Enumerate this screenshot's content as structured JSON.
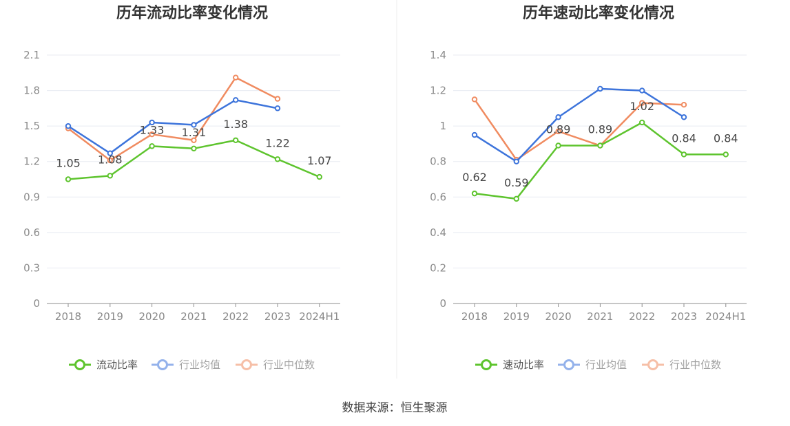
{
  "source": "数据来源：恒生聚源",
  "colors": {
    "company": "#5ec42e",
    "avg": "#3d74db",
    "median": "#f08b60",
    "grid": "#e8ebf2",
    "axis": "#8c8c8c"
  },
  "chart_data": [
    {
      "type": "line",
      "title": "历年流动比率变化情况",
      "categories": [
        "2018",
        "2019",
        "2020",
        "2021",
        "2022",
        "2023",
        "2024H1"
      ],
      "ylim": [
        0,
        2.1
      ],
      "yticks": [
        "0",
        "0.3",
        "0.6",
        "0.9",
        "1.2",
        "1.5",
        "1.8",
        "2.1"
      ],
      "grid": true,
      "legend_position": "bottom",
      "series": [
        {
          "name": "流动比率",
          "color": "#5ec42e",
          "values": [
            1.05,
            1.08,
            1.33,
            1.31,
            1.38,
            1.22,
            1.07
          ],
          "labels": [
            "1.05",
            "1.08",
            "1.33",
            "1.31",
            "1.38",
            "1.22",
            "1.07"
          ]
        },
        {
          "name": "行业均值",
          "color": "#3d74db",
          "values": [
            1.5,
            1.27,
            1.53,
            1.51,
            1.72,
            1.65,
            null
          ]
        },
        {
          "name": "行业中位数",
          "color": "#f08b60",
          "values": [
            1.48,
            1.21,
            1.43,
            1.38,
            1.91,
            1.73,
            null
          ]
        }
      ]
    },
    {
      "type": "line",
      "title": "历年速动比率变化情况",
      "categories": [
        "2018",
        "2019",
        "2020",
        "2021",
        "2022",
        "2023",
        "2024H1"
      ],
      "ylim": [
        0,
        1.4
      ],
      "yticks": [
        "0",
        "0.2",
        "0.4",
        "0.6",
        "0.8",
        "1",
        "1.2",
        "1.4"
      ],
      "grid": true,
      "legend_position": "bottom",
      "series": [
        {
          "name": "速动比率",
          "color": "#5ec42e",
          "values": [
            0.62,
            0.59,
            0.89,
            0.89,
            1.02,
            0.84,
            0.84
          ],
          "labels": [
            "0.62",
            "0.59",
            "0.89",
            "0.89",
            "1.02",
            "0.84",
            "0.84"
          ]
        },
        {
          "name": "行业均值",
          "color": "#3d74db",
          "values": [
            0.95,
            0.8,
            1.05,
            1.21,
            1.2,
            1.05,
            null
          ]
        },
        {
          "name": "行业中位数",
          "color": "#f08b60",
          "values": [
            1.15,
            0.81,
            0.97,
            0.89,
            1.13,
            1.12,
            null
          ]
        }
      ]
    }
  ]
}
